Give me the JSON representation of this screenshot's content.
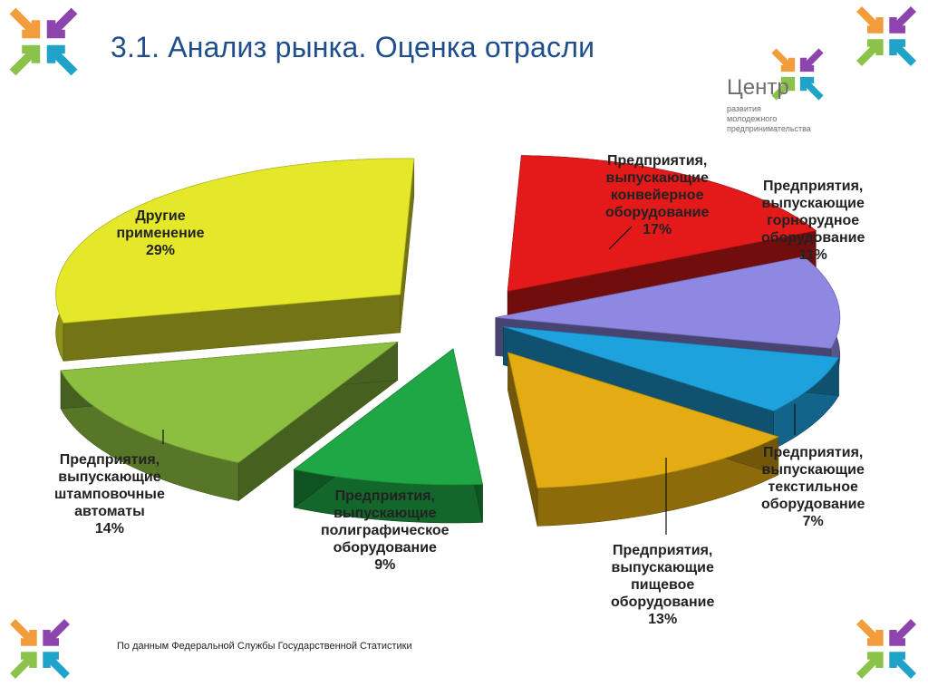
{
  "slide": {
    "title": "3.1. Анализ рынка. Оценка отрасли",
    "logo": {
      "name": "Центр",
      "subtitle_lines": [
        "развития",
        "молодежного",
        "предпринимательства"
      ]
    },
    "source_note": "По данным Федеральной Службы Государственной Статистики"
  },
  "colors": {
    "title": "#1F4E8C",
    "orange": "#F39C3C",
    "purple": "#8E44AD",
    "lime": "#8BC34A",
    "teal": "#1FA3C8",
    "pink": "#E04A8C"
  },
  "chart_data": {
    "type": "pie",
    "style": "3d-exploded",
    "title": "",
    "slices": [
      {
        "lines": [
          "Предприятия,",
          "выпускающие",
          "конвейерное",
          "оборудование"
        ],
        "pct": "17%",
        "value": 17,
        "color": "#E41A1A"
      },
      {
        "lines": [
          "Предприятия,",
          "выпускающие",
          "горнорудное",
          "оборудование"
        ],
        "pct": "11%",
        "value": 11,
        "color": "#8E88E3"
      },
      {
        "lines": [
          "Предприятия,",
          "выпускающие",
          "текстильное",
          "оборудование"
        ],
        "pct": "7%",
        "value": 7,
        "color": "#1EA2DE"
      },
      {
        "lines": [
          "Предприятия,",
          "выпускающие",
          "пищевое",
          "оборудование"
        ],
        "pct": "13%",
        "value": 13,
        "color": "#E3AC12"
      },
      {
        "lines": [
          "Предприятия,",
          "выпускающие",
          "полиграфическое",
          "оборудование"
        ],
        "pct": "9%",
        "value": 9,
        "color": "#1FA645"
      },
      {
        "lines": [
          "Предприятия,",
          "выпускающие",
          "штамповочные",
          "автоматы"
        ],
        "pct": "14%",
        "value": 14,
        "color": "#8CBF3F"
      },
      {
        "lines": [
          "Другие",
          "применение"
        ],
        "pct": "29%",
        "value": 29,
        "color": "#E4E829"
      }
    ]
  }
}
